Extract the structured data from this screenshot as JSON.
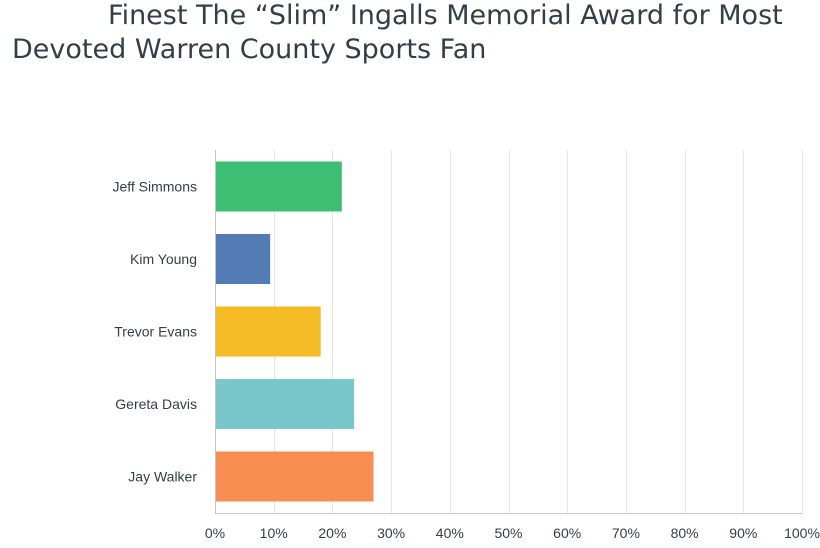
{
  "chart_data": {
    "type": "bar",
    "orientation": "horizontal",
    "title": "Finest The “Slim” Ingalls Memorial Award for Most Devoted Warren County Sports Fan",
    "title_lines": [
      "Finest The “Slim” Ingalls Memorial Award for Most",
      "Devoted Warren County Sports Fan"
    ],
    "categories": [
      "Jeff Simmons",
      "Kim Young",
      "Trevor Evans",
      "Gereta Davis",
      "Jay Walker"
    ],
    "values": [
      21.6,
      9.4,
      18.0,
      23.7,
      27.0
    ],
    "colors": [
      "#3dbf73",
      "#537bb4",
      "#f5bb24",
      "#79c7ca",
      "#f88d51"
    ],
    "xlim": [
      0,
      100
    ],
    "x_ticks": [
      0,
      10,
      20,
      30,
      40,
      50,
      60,
      70,
      80,
      90,
      100
    ],
    "x_tick_labels": [
      "0%",
      "10%",
      "20%",
      "30%",
      "40%",
      "50%",
      "60%",
      "70%",
      "80%",
      "90%",
      "100%"
    ],
    "xlabel": "",
    "ylabel": "",
    "grid": true,
    "legend": "none"
  }
}
